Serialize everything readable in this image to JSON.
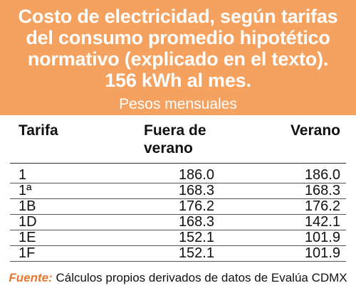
{
  "header": {
    "title": "Costo de electricidad, según tarifas del consumo promedio hipotético normativo (explicado en el texto). 156 kWh al mes.",
    "subtitle": "Pesos mensuales"
  },
  "table": {
    "columns": [
      "Tarifa",
      "Fuera de verano",
      "Verano"
    ],
    "rows": [
      {
        "tarifa": "1",
        "fuera_de_verano": "186.0",
        "verano": "186.0"
      },
      {
        "tarifa": "1ª",
        "fuera_de_verano": "168.3",
        "verano": "168.3"
      },
      {
        "tarifa": "1B",
        "fuera_de_verano": "176.2",
        "verano": "176.2"
      },
      {
        "tarifa": "1D",
        "fuera_de_verano": "168.3",
        "verano": "142.1"
      },
      {
        "tarifa": "1E",
        "fuera_de_verano": "152.1",
        "verano": "101.9"
      },
      {
        "tarifa": "1F",
        "fuera_de_verano": "152.1",
        "verano": "101.9"
      }
    ]
  },
  "source": {
    "label": "Fuente:",
    "text": " Cálculos propios derivados de datos de Evalúa CDMX"
  },
  "colors": {
    "header_background": "#f5a15f",
    "source_label": "#e8782f"
  }
}
